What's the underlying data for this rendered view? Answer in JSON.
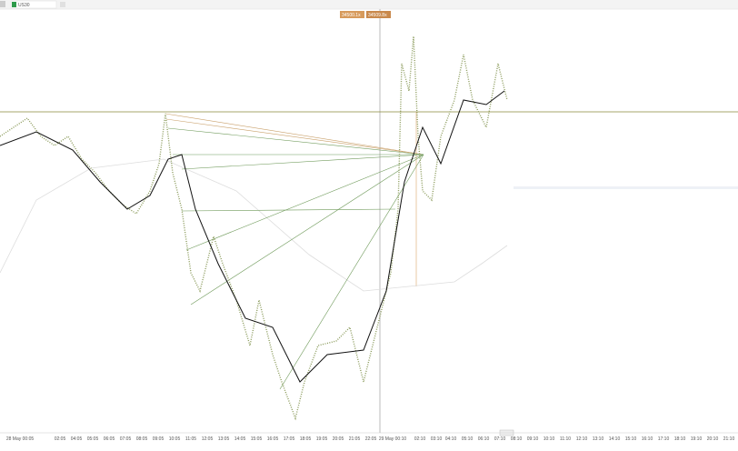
{
  "tab": {
    "title": "US30"
  },
  "price_tags": [
    "34500.1x",
    "34509.8x"
  ],
  "time_axis": [
    "28 May 00:05",
    "02:05",
    "04:05",
    "05:05",
    "06:05",
    "07:05",
    "08:05",
    "09:05",
    "10:05",
    "11:05",
    "12:05",
    "13:05",
    "14:05",
    "15:05",
    "16:05",
    "17:05",
    "18:05",
    "19:05",
    "20:05",
    "21:05",
    "22:05",
    "29 May 00:10",
    "02:10",
    "03:10",
    "04:10",
    "05:10",
    "06:10",
    "07:10",
    "08:10",
    "09:10",
    "10:10",
    "11:10",
    "12:10",
    "13:10",
    "14:10",
    "15:10",
    "16:10",
    "17:10",
    "18:10",
    "19:10",
    "20:10",
    "21:10"
  ]
}
